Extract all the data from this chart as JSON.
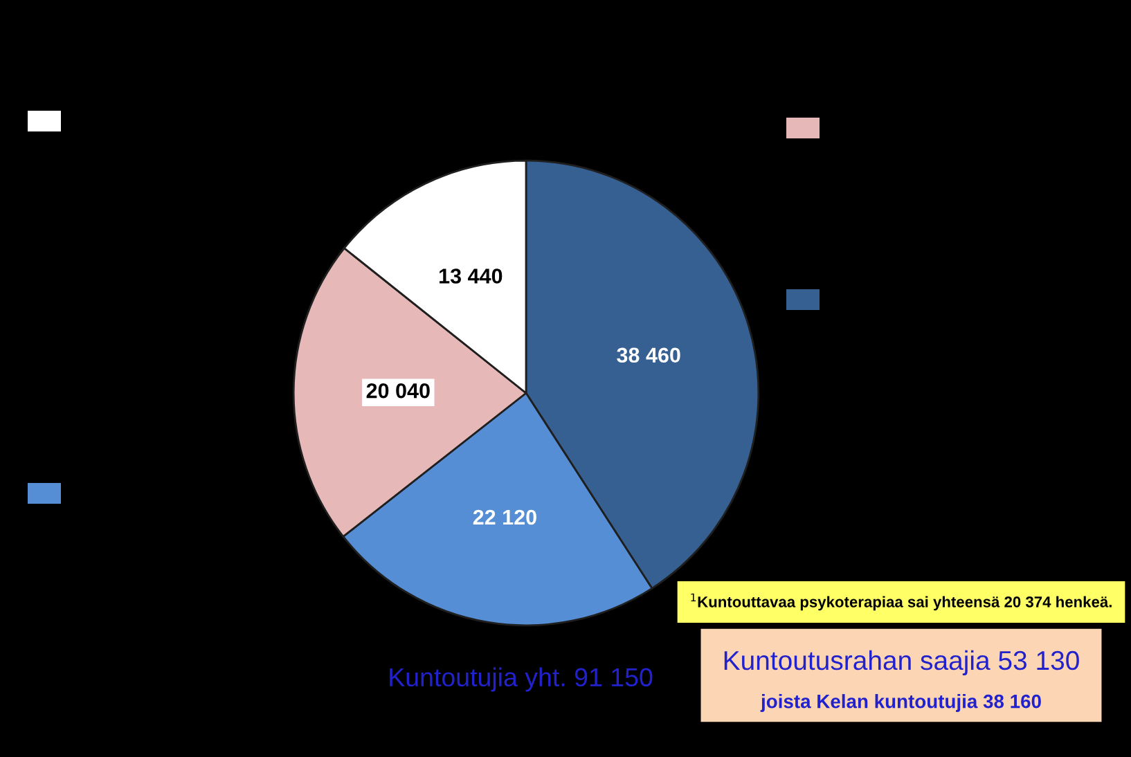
{
  "chart_data": {
    "type": "pie",
    "categories": [
      null,
      null,
      null,
      null
    ],
    "values": [
      38460,
      22120,
      20040,
      13440
    ],
    "colors": [
      "#376092",
      "#558ed5",
      "#e6b9b8",
      "#ffffff"
    ],
    "data_labels": true,
    "annotations": [
      "$^{1}$Kuntouttavaa psykoterapiaa sai yhteensä 20 374 henkeä.",
      "Kuntoutujia yht. 91 150",
      "Kuntoutusrahan saajia 53 130\njoista Kelan kuntoutujia 38 160"
    ]
  }
}
